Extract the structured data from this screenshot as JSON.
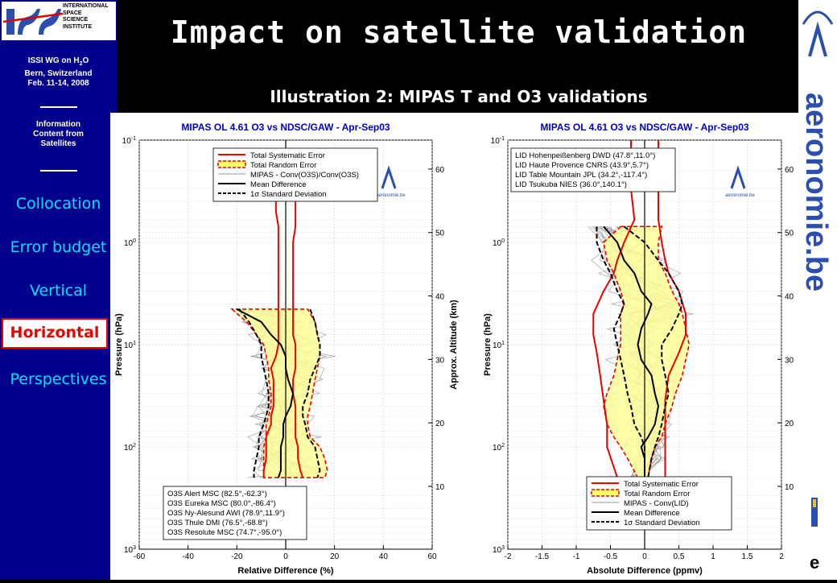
{
  "logo": {
    "lines": "INTERNATIONAL\nSPACE\nSCIENCE\nINSTITUTE",
    "mark": "ISSI"
  },
  "sidebar": {
    "workshop_line1": "ISSI WG on H",
    "workshop_sub": "2",
    "workshop_line1b": "O",
    "workshop_line2": "Bern, Switzerland",
    "workshop_line3": "Feb. 11-14, 2008",
    "info_line1": "Information",
    "info_line2": "Content from",
    "info_line3": "Satellites",
    "items": [
      {
        "label": "Collocation",
        "active": false
      },
      {
        "label": "Error budget",
        "active": false
      },
      {
        "label": "Vertical",
        "active": false
      },
      {
        "label": "Horizontal",
        "active": true
      },
      {
        "label": "Perspectives",
        "active": false
      }
    ]
  },
  "title": "Impact on satellite validation",
  "subtitle": "Illustration 2: MIPAS T and O3 validations",
  "right_logo_text": "aeronomie.be",
  "chart_data": [
    {
      "type": "line",
      "title": "MIPAS OL 4.61 O3 vs NDSC/GAW - Apr-Sep03",
      "xlabel": "Relative Difference (%)",
      "ylabel": "Pressure (hPa)",
      "y2label": "Approx. Altitude (km)",
      "xlim": [
        -60,
        60
      ],
      "ylim": [
        0.1,
        1000
      ],
      "yscale": "log",
      "xticks": [
        "-60",
        "-40",
        "-20",
        "0",
        "20",
        "40",
        "60"
      ],
      "yticks": [
        "10-1",
        "100",
        "101",
        "102",
        "103"
      ],
      "y2ticks": [
        "10",
        "20",
        "30",
        "40",
        "50",
        "60"
      ],
      "logo_text": "aeronomie.be",
      "legend_top": [
        {
          "label": "Total Systematic Error",
          "style": "red"
        },
        {
          "label": "Total Random Error",
          "style": "yellow-fill"
        },
        {
          "label": "MIPAS - Conv(O3S)/Conv(O3S)",
          "style": "grey"
        },
        {
          "label": "Mean Difference",
          "style": "black"
        },
        {
          "label": "1σ Standard Deviation",
          "style": "black-dash"
        }
      ],
      "legend_bottom": [
        "O3S Alert MSC (82.5°,-62.3°)",
        "O3S Eureka MSC (80.0°,-86.4°)",
        "O3S Ny-Alesund AWI (78.9°,11.9°)",
        "O3S Thule DMI (76.5°,-68.8°)",
        "O3S Resolute MSC (74.7°,-95.0°)"
      ],
      "pressure": [
        4.5,
        6,
        8,
        10,
        13,
        17,
        22,
        30,
        40,
        50,
        60,
        80,
        100,
        130,
        170,
        200
      ],
      "random_lo": [
        -22,
        -16,
        -12,
        -9,
        -8,
        -7,
        -7,
        -6,
        -6,
        -7,
        -8,
        -8,
        -9,
        -9,
        -9,
        -9
      ],
      "random_hi": [
        9,
        12,
        13,
        14,
        14,
        13,
        12,
        11,
        10,
        9,
        9,
        10,
        14,
        16,
        17,
        16
      ],
      "sys_lo": [
        -3,
        -3,
        -3,
        -3,
        -4,
        -6,
        -5,
        -5,
        -5,
        -6,
        -6,
        -8,
        -8,
        -8,
        -9,
        -9
      ],
      "sys_hi": [
        3,
        3,
        3,
        4,
        4,
        4,
        3,
        3,
        4,
        4,
        4,
        4,
        5,
        5,
        6,
        7
      ],
      "mean": [
        -20,
        -10,
        -6,
        -2,
        0,
        0,
        1,
        3,
        2,
        0,
        -1,
        -1,
        -2,
        -2,
        -2,
        -3
      ],
      "sd_lo": [
        -19,
        -15,
        -12,
        -10,
        -10,
        -9,
        -8,
        -7,
        -7,
        -8,
        -9,
        -11,
        -11,
        -12,
        -13,
        -13
      ],
      "sd_hi": [
        10,
        12,
        13,
        14,
        14,
        12,
        10,
        9,
        7,
        7,
        8,
        9,
        12,
        13,
        14,
        13
      ],
      "sys_upper_pressure": [
        0.4,
        0.5,
        0.7,
        1,
        1.5,
        2,
        3,
        4.5
      ],
      "sys_upper_lo": [
        -4,
        -4,
        -3,
        -3,
        -3,
        -3,
        -3,
        -3
      ],
      "sys_upper_hi": [
        4,
        4,
        4,
        3,
        3,
        3,
        3,
        3
      ]
    },
    {
      "type": "line",
      "title": "MIPAS OL 4.61 O3 vs NDSC/GAW - Apr-Sep03",
      "xlabel": "Absolute Difference (ppmv)",
      "ylabel": "Pressure (hPa)",
      "y2label": "Approx. Altitude (km)",
      "xlim": [
        -2,
        2
      ],
      "ylim": [
        0.1,
        1000
      ],
      "yscale": "log",
      "xticks": [
        "-2",
        "-1.5",
        "-1",
        "-0.5",
        "0",
        "0.5",
        "1",
        "1.5",
        "2"
      ],
      "yticks": [
        "10-1",
        "100",
        "101",
        "102",
        "103"
      ],
      "y2ticks": [
        "10",
        "20",
        "30",
        "40",
        "50",
        "60"
      ],
      "logo_text": "aeronomie.be",
      "legend_top": [
        "LID Hohenpeißenberg DWD (47.8°,11.0°)",
        "LID Haute Provence CNRS (43.9°,5.7°)",
        "LID Table Mountain JPL (34.2°,-117.4°)",
        "LID Tsukuba NIES (36.0°,140.1°)"
      ],
      "legend_bottom": [
        {
          "label": "Total Systematic Error",
          "style": "red"
        },
        {
          "label": "Total Random Error",
          "style": "yellow-fill"
        },
        {
          "label": "MIPAS - Conv(LID)",
          "style": "grey"
        },
        {
          "label": "Mean Difference",
          "style": "black"
        },
        {
          "label": "1σ Standard Deviation",
          "style": "black-dash"
        }
      ],
      "pressure": [
        0.7,
        1,
        1.5,
        2,
        3,
        4,
        5,
        7,
        10,
        14,
        20,
        30,
        40,
        60,
        80,
        100,
        130,
        200
      ],
      "random_lo": [
        -0.35,
        -0.6,
        -0.55,
        -0.45,
        -0.35,
        -0.3,
        -0.35,
        -0.35,
        -0.35,
        -0.4,
        -0.45,
        -0.55,
        -0.6,
        -0.55,
        -0.45,
        -0.35,
        -0.25,
        -0.1
      ],
      "random_hi": [
        0.25,
        0.2,
        0.2,
        0.3,
        0.4,
        0.5,
        0.55,
        0.6,
        0.65,
        0.6,
        0.55,
        0.45,
        0.4,
        0.3,
        0.25,
        0.15,
        0.1,
        0.05
      ],
      "mean": [
        -0.6,
        -0.4,
        -0.3,
        -0.15,
        -0.05,
        0.1,
        0.05,
        -0.05,
        -0.1,
        -0.05,
        0.1,
        0.15,
        0.2,
        0.15,
        0.05,
        -0.05,
        0.0,
        0.0
      ],
      "sd_lo": [
        -0.7,
        -0.7,
        -0.6,
        -0.5,
        -0.4,
        -0.3,
        -0.35,
        -0.45,
        -0.4,
        -0.35,
        -0.3,
        -0.25,
        -0.2,
        -0.15,
        -0.05,
        0.0,
        0.0,
        0.0
      ],
      "sd_hi": [
        -0.3,
        0.0,
        0.2,
        0.35,
        0.5,
        0.55,
        0.5,
        0.4,
        0.25,
        0.25,
        0.3,
        0.35,
        0.3,
        0.25,
        0.2,
        0.15,
        0.1,
        0.05
      ],
      "sys_pressure": [
        0.1,
        0.3,
        0.6,
        1,
        1.5,
        2,
        3,
        5,
        8,
        12,
        20,
        35,
        60,
        100,
        200
      ],
      "sys_lo": [
        -0.2,
        -0.2,
        -0.15,
        -0.3,
        -0.4,
        -0.45,
        -0.6,
        -0.75,
        -0.75,
        -0.7,
        -0.65,
        -0.6,
        -0.55,
        -0.55,
        -0.4
      ],
      "sys_hi": [
        0.2,
        0.2,
        0.2,
        0.25,
        0.3,
        0.35,
        0.5,
        0.6,
        0.6,
        0.5,
        0.35,
        0.3,
        0.3,
        0.3,
        0.3
      ]
    }
  ]
}
